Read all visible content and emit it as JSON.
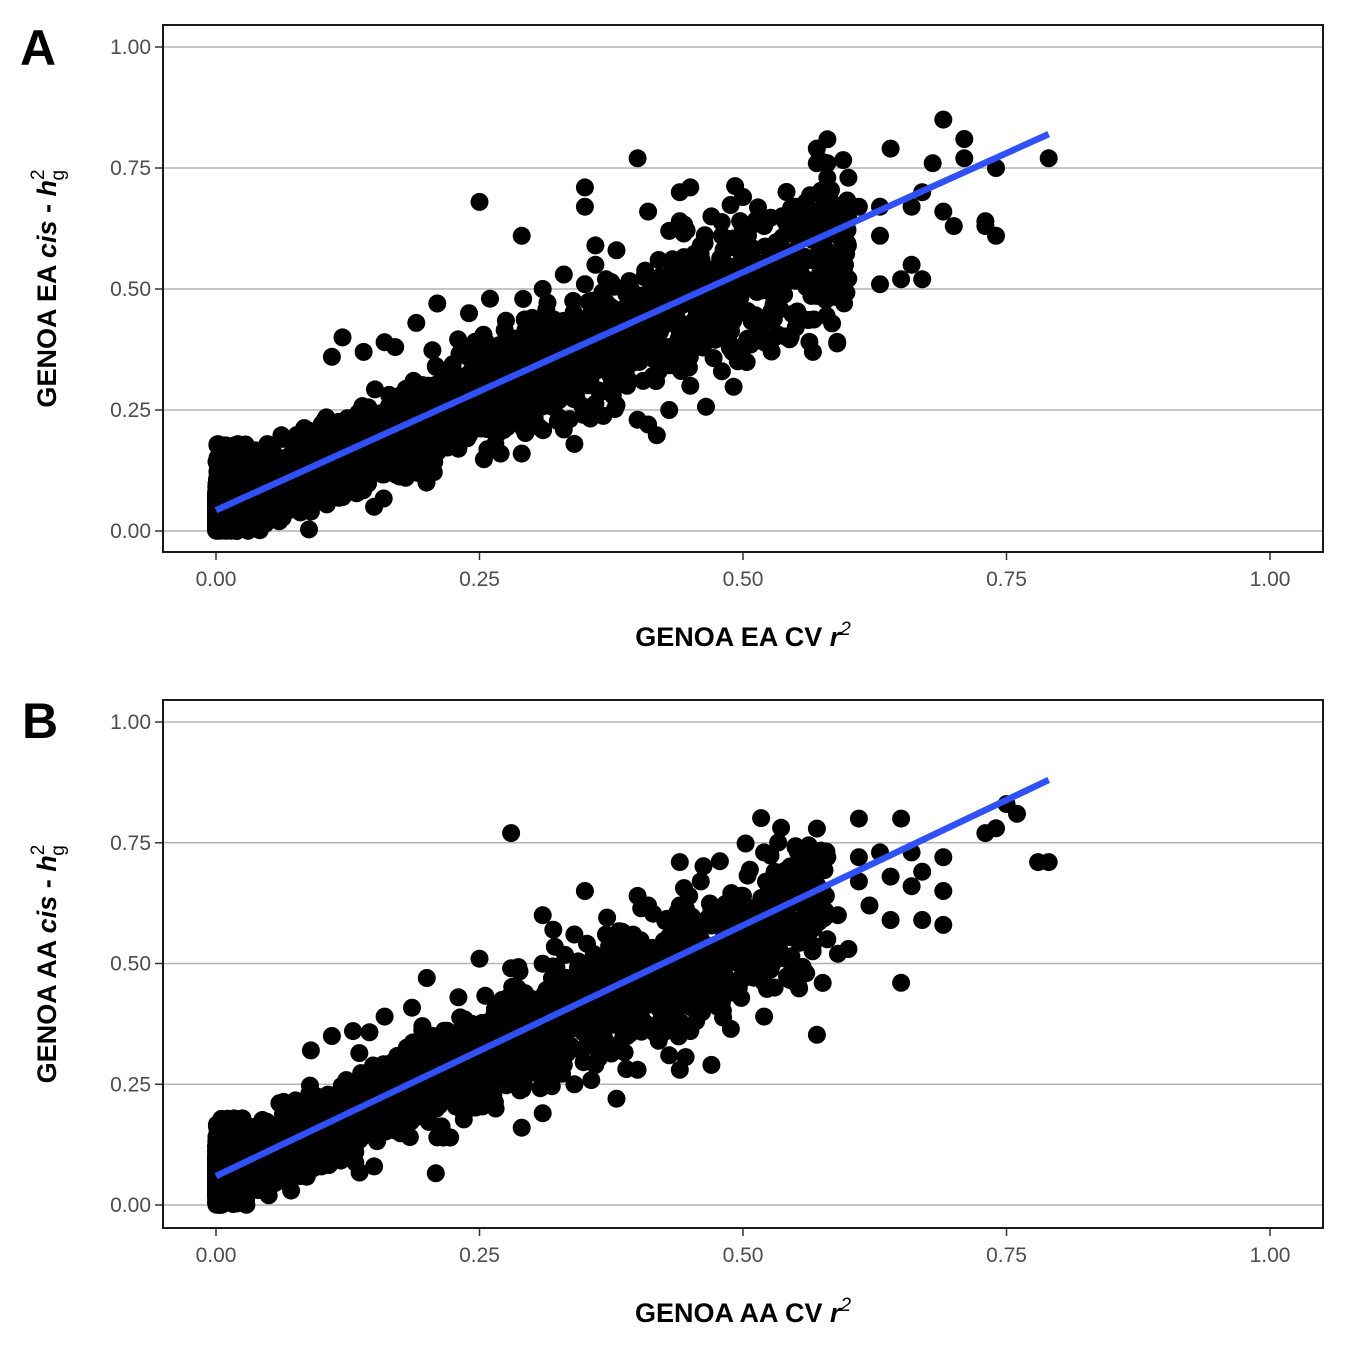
{
  "chart_data": [
    {
      "type": "scatter",
      "panel_label": "A",
      "xlabel": {
        "prefix": "GENOA EA CV ",
        "var": "r",
        "sup": "2"
      },
      "ylabel": {
        "prefix": "GENOA EA ",
        "italic": "cis",
        "mid": " - ",
        "var": "h",
        "sup": "2",
        "sub": "g"
      },
      "xlim": [
        0,
        1
      ],
      "ylim": [
        0,
        1
      ],
      "xticks": [
        "0.00",
        "0.25",
        "0.50",
        "0.75",
        "1.00"
      ],
      "yticks": [
        "0.00",
        "0.25",
        "0.50",
        "0.75",
        "1.00"
      ],
      "horizontal_grid": true,
      "point_color": "#000000",
      "fit_line": {
        "color": "#3050F8",
        "x": [
          0.0,
          0.79
        ],
        "y": [
          0.043,
          0.82
        ]
      },
      "bulk_band": {
        "x_max": 0.6,
        "slope": 0.95,
        "intercept": 0.04,
        "half_width_base": 0.06,
        "half_width_slope": 0.22
      },
      "outliers": [
        [
          0.69,
          0.85
        ],
        [
          0.71,
          0.81
        ],
        [
          0.57,
          0.79
        ],
        [
          0.64,
          0.79
        ],
        [
          0.79,
          0.77
        ],
        [
          0.4,
          0.77
        ],
        [
          0.57,
          0.76
        ],
        [
          0.58,
          0.76
        ],
        [
          0.68,
          0.76
        ],
        [
          0.71,
          0.77
        ],
        [
          0.74,
          0.75
        ],
        [
          0.6,
          0.73
        ],
        [
          0.35,
          0.71
        ],
        [
          0.44,
          0.7
        ],
        [
          0.45,
          0.71
        ],
        [
          0.5,
          0.69
        ],
        [
          0.35,
          0.67
        ],
        [
          0.55,
          0.67
        ],
        [
          0.56,
          0.68
        ],
        [
          0.57,
          0.66
        ],
        [
          0.61,
          0.67
        ],
        [
          0.63,
          0.67
        ],
        [
          0.66,
          0.67
        ],
        [
          0.67,
          0.7
        ],
        [
          0.69,
          0.66
        ],
        [
          0.73,
          0.64
        ],
        [
          0.74,
          0.61
        ],
        [
          0.73,
          0.63
        ],
        [
          0.7,
          0.63
        ],
        [
          0.63,
          0.61
        ],
        [
          0.25,
          0.68
        ],
        [
          0.29,
          0.61
        ],
        [
          0.58,
          0.73
        ],
        [
          0.52,
          0.63
        ],
        [
          0.66,
          0.55
        ],
        [
          0.65,
          0.52
        ],
        [
          0.67,
          0.52
        ],
        [
          0.63,
          0.51
        ],
        [
          0.59,
          0.49
        ],
        [
          0.56,
          0.52
        ],
        [
          0.58,
          0.51
        ],
        [
          0.52,
          0.39
        ],
        [
          0.41,
          0.22
        ],
        [
          0.43,
          0.25
        ],
        [
          0.34,
          0.18
        ],
        [
          0.29,
          0.16
        ],
        [
          0.27,
          0.16
        ],
        [
          0.15,
          0.05
        ],
        [
          0.4,
          0.23
        ],
        [
          0.38,
          0.26
        ],
        [
          0.33,
          0.21
        ],
        [
          0.45,
          0.3
        ],
        [
          0.48,
          0.33
        ],
        [
          0.49,
          0.37
        ],
        [
          0.53,
          0.4
        ],
        [
          0.5,
          0.38
        ],
        [
          0.55,
          0.45
        ],
        [
          0.52,
          0.43
        ],
        [
          0.47,
          0.52
        ],
        [
          0.55,
          0.58
        ],
        [
          0.53,
          0.54
        ],
        [
          0.51,
          0.55
        ],
        [
          0.49,
          0.6
        ],
        [
          0.46,
          0.59
        ],
        [
          0.43,
          0.62
        ],
        [
          0.42,
          0.56
        ],
        [
          0.38,
          0.58
        ],
        [
          0.36,
          0.55
        ],
        [
          0.31,
          0.5
        ],
        [
          0.26,
          0.48
        ],
        [
          0.24,
          0.45
        ],
        [
          0.21,
          0.47
        ],
        [
          0.19,
          0.43
        ],
        [
          0.16,
          0.39
        ],
        [
          0.12,
          0.4
        ],
        [
          0.14,
          0.37
        ],
        [
          0.11,
          0.36
        ],
        [
          0.17,
          0.38
        ],
        [
          0.33,
          0.53
        ],
        [
          0.36,
          0.59
        ],
        [
          0.37,
          0.52
        ],
        [
          0.41,
          0.66
        ],
        [
          0.44,
          0.64
        ],
        [
          0.47,
          0.65
        ],
        [
          0.48,
          0.61
        ],
        [
          0.35,
          0.51
        ],
        [
          0.3,
          0.44
        ],
        [
          0.4,
          0.45
        ],
        [
          0.44,
          0.42
        ],
        [
          0.46,
          0.4
        ],
        [
          0.36,
          0.33
        ],
        [
          0.39,
          0.3
        ],
        [
          0.42,
          0.33
        ],
        [
          0.3,
          0.29
        ],
        [
          0.25,
          0.23
        ],
        [
          0.22,
          0.2
        ],
        [
          0.2,
          0.13
        ],
        [
          0.18,
          0.11
        ],
        [
          0.23,
          0.17
        ],
        [
          0.12,
          0.07
        ],
        [
          0.09,
          0.04
        ],
        [
          0.06,
          0.02
        ]
      ]
    },
    {
      "type": "scatter",
      "panel_label": "B",
      "xlabel": {
        "prefix": "GENOA AA CV ",
        "var": "r",
        "sup": "2"
      },
      "ylabel": {
        "prefix": "GENOA AA ",
        "italic": "cis",
        "mid": " - ",
        "var": "h",
        "sup": "2",
        "sub": "g"
      },
      "xlim": [
        0,
        1
      ],
      "ylim": [
        0,
        1
      ],
      "xticks": [
        "0.00",
        "0.25",
        "0.50",
        "0.75",
        "1.00"
      ],
      "yticks": [
        "0.00",
        "0.25",
        "0.50",
        "0.75",
        "1.00"
      ],
      "horizontal_grid": true,
      "point_color": "#000000",
      "fit_line": {
        "color": "#3050F8",
        "x": [
          0.0,
          0.79
        ],
        "y": [
          0.06,
          0.88
        ]
      },
      "bulk_band": {
        "x_max": 0.58,
        "slope": 1.0,
        "intercept": 0.06,
        "half_width_base": 0.06,
        "half_width_slope": 0.2
      },
      "outliers": [
        [
          0.75,
          0.83
        ],
        [
          0.76,
          0.81
        ],
        [
          0.74,
          0.78
        ],
        [
          0.73,
          0.77
        ],
        [
          0.78,
          0.71
        ],
        [
          0.79,
          0.71
        ],
        [
          0.65,
          0.8
        ],
        [
          0.61,
          0.8
        ],
        [
          0.28,
          0.77
        ],
        [
          0.55,
          0.74
        ],
        [
          0.52,
          0.73
        ],
        [
          0.57,
          0.72
        ],
        [
          0.58,
          0.72
        ],
        [
          0.61,
          0.72
        ],
        [
          0.63,
          0.73
        ],
        [
          0.66,
          0.73
        ],
        [
          0.69,
          0.72
        ],
        [
          0.67,
          0.69
        ],
        [
          0.64,
          0.68
        ],
        [
          0.61,
          0.67
        ],
        [
          0.66,
          0.66
        ],
        [
          0.69,
          0.65
        ],
        [
          0.67,
          0.59
        ],
        [
          0.69,
          0.58
        ],
        [
          0.64,
          0.59
        ],
        [
          0.62,
          0.62
        ],
        [
          0.59,
          0.6
        ],
        [
          0.58,
          0.55
        ],
        [
          0.59,
          0.52
        ],
        [
          0.6,
          0.53
        ],
        [
          0.65,
          0.46
        ],
        [
          0.44,
          0.71
        ],
        [
          0.46,
          0.67
        ],
        [
          0.35,
          0.65
        ],
        [
          0.4,
          0.64
        ],
        [
          0.41,
          0.62
        ],
        [
          0.49,
          0.64
        ],
        [
          0.5,
          0.64
        ],
        [
          0.53,
          0.69
        ],
        [
          0.47,
          0.61
        ],
        [
          0.31,
          0.6
        ],
        [
          0.32,
          0.57
        ],
        [
          0.37,
          0.56
        ],
        [
          0.44,
          0.62
        ],
        [
          0.52,
          0.46
        ],
        [
          0.53,
          0.45
        ],
        [
          0.55,
          0.46
        ],
        [
          0.49,
          0.44
        ],
        [
          0.52,
          0.39
        ],
        [
          0.56,
          0.48
        ],
        [
          0.45,
          0.36
        ],
        [
          0.47,
          0.29
        ],
        [
          0.44,
          0.28
        ],
        [
          0.4,
          0.28
        ],
        [
          0.38,
          0.22
        ],
        [
          0.31,
          0.19
        ],
        [
          0.29,
          0.16
        ],
        [
          0.15,
          0.08
        ],
        [
          0.21,
          0.14
        ],
        [
          0.42,
          0.34
        ],
        [
          0.43,
          0.31
        ],
        [
          0.34,
          0.25
        ],
        [
          0.36,
          0.29
        ],
        [
          0.2,
          0.47
        ],
        [
          0.23,
          0.43
        ],
        [
          0.16,
          0.39
        ],
        [
          0.13,
          0.36
        ],
        [
          0.11,
          0.35
        ],
        [
          0.09,
          0.32
        ],
        [
          0.25,
          0.51
        ],
        [
          0.28,
          0.49
        ],
        [
          0.34,
          0.56
        ],
        [
          0.38,
          0.53
        ],
        [
          0.43,
          0.55
        ],
        [
          0.46,
          0.54
        ],
        [
          0.48,
          0.5
        ],
        [
          0.5,
          0.55
        ],
        [
          0.54,
          0.6
        ],
        [
          0.56,
          0.63
        ],
        [
          0.41,
          0.47
        ],
        [
          0.36,
          0.46
        ],
        [
          0.3,
          0.4
        ],
        [
          0.26,
          0.35
        ],
        [
          0.18,
          0.28
        ],
        [
          0.12,
          0.12
        ],
        [
          0.08,
          0.06
        ],
        [
          0.05,
          0.02
        ],
        [
          0.1,
          0.08
        ],
        [
          0.24,
          0.2
        ],
        [
          0.33,
          0.29
        ],
        [
          0.39,
          0.35
        ],
        [
          0.45,
          0.41
        ],
        [
          0.48,
          0.42
        ],
        [
          0.51,
          0.49
        ],
        [
          0.54,
          0.51
        ]
      ]
    }
  ]
}
